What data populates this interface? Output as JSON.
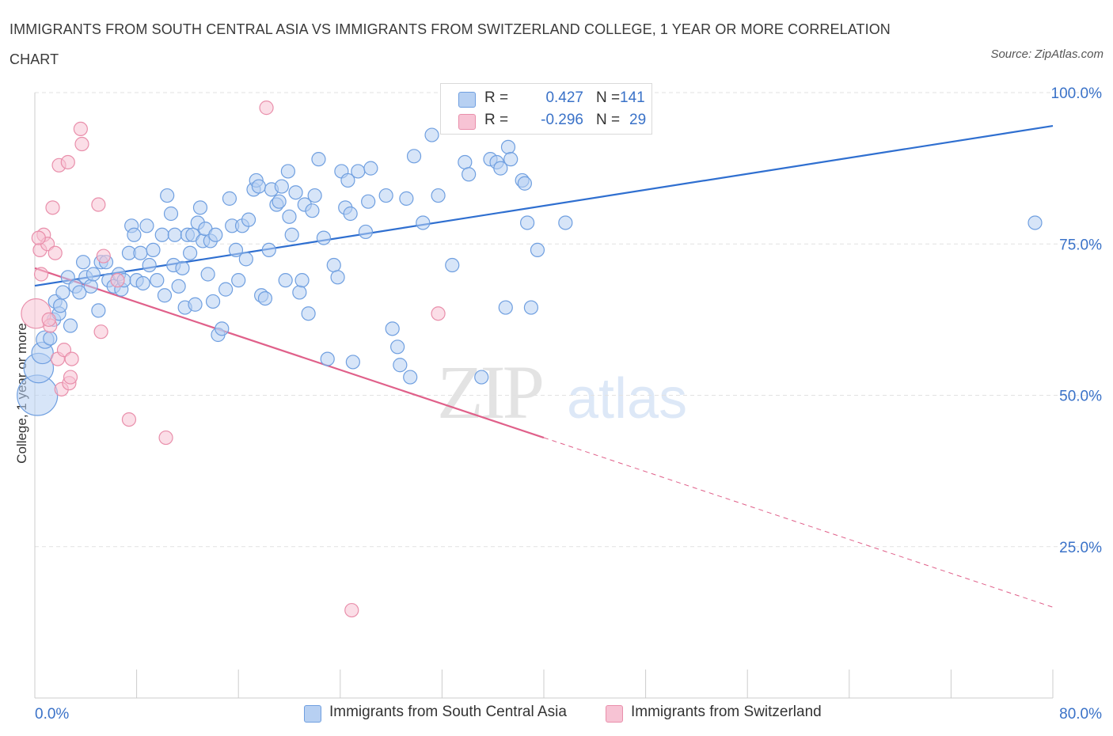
{
  "title": "IMMIGRANTS FROM SOUTH CENTRAL ASIA VS IMMIGRANTS FROM SWITZERLAND COLLEGE, 1 YEAR OR MORE CORRELATION CHART",
  "source": "Source: ZipAtlas.com",
  "watermark": {
    "zip": "ZIP",
    "atlas": "atlas"
  },
  "legend": {
    "series1": {
      "r_label": "R =",
      "r_value": "0.427",
      "n_label": "N =",
      "n_value": "141"
    },
    "series2": {
      "r_label": "R =",
      "r_value": "-0.296",
      "n_label": "N =",
      "n_value": "29"
    }
  },
  "colors": {
    "blue_fill": "#b7d0f2",
    "blue_stroke": "#6f9fe0",
    "blue_line": "#2f6fd0",
    "pink_fill": "#f7c3d4",
    "pink_stroke": "#e98fab",
    "pink_line": "#e0608a",
    "axis_text": "#3a72c8",
    "grid": "#dedede"
  },
  "chart_data": {
    "type": "scatter",
    "title": "IMMIGRANTS FROM SOUTH CENTRAL ASIA VS IMMIGRANTS FROM SWITZERLAND COLLEGE, 1 YEAR OR MORE CORRELATION CHART",
    "xlabel": "",
    "ylabel": "College, 1 year or more",
    "xlim": [
      0,
      80
    ],
    "ylim": [
      0,
      100
    ],
    "x_tick_labels": [
      "0.0%",
      "80.0%"
    ],
    "y_tick_labels": [
      "100.0%",
      "75.0%",
      "50.0%",
      "25.0%"
    ],
    "y_ticks": [
      100,
      75,
      50,
      25
    ],
    "grid": true,
    "legend_position": "top-center",
    "series": [
      {
        "name": "Immigrants from South Central Asia",
        "color": "#6f9fe0",
        "trend": {
          "x": [
            0,
            80
          ],
          "y": [
            68.1,
            94.5
          ]
        },
        "points": [
          [
            0.2,
            50,
            3
          ],
          [
            0.3,
            54.5,
            2.2
          ],
          [
            0.6,
            57,
            1.6
          ],
          [
            0.8,
            59.2,
            1.3
          ],
          [
            1.2,
            59.4,
            1
          ],
          [
            1.5,
            62.5,
            1
          ],
          [
            1.6,
            65.5,
            1
          ],
          [
            1.9,
            63.5,
            1
          ],
          [
            2,
            64.8,
            1
          ],
          [
            2.2,
            67,
            1
          ],
          [
            2.6,
            69.5,
            1
          ],
          [
            2.8,
            61.5,
            1
          ],
          [
            3.2,
            68,
            1
          ],
          [
            3.5,
            67,
            1
          ],
          [
            3.8,
            72,
            1
          ],
          [
            4,
            69.5,
            1
          ],
          [
            4.4,
            68,
            1
          ],
          [
            4.6,
            70,
            1
          ],
          [
            5,
            64,
            1
          ],
          [
            5.2,
            72,
            1
          ],
          [
            5.6,
            72,
            1
          ],
          [
            5.8,
            69,
            1
          ],
          [
            6.2,
            68,
            1
          ],
          [
            6.6,
            70,
            1
          ],
          [
            6.8,
            67.5,
            1
          ],
          [
            7,
            69,
            1
          ],
          [
            7.4,
            73.5,
            1
          ],
          [
            7.6,
            78,
            1
          ],
          [
            7.8,
            76.5,
            1
          ],
          [
            8,
            69,
            1
          ],
          [
            8.3,
            73.5,
            1
          ],
          [
            8.5,
            68.5,
            1
          ],
          [
            8.8,
            78,
            1
          ],
          [
            9,
            71.5,
            1
          ],
          [
            9.3,
            74,
            1
          ],
          [
            9.6,
            69,
            1
          ],
          [
            10,
            76.5,
            1
          ],
          [
            10.2,
            66.5,
            1
          ],
          [
            10.4,
            83,
            1
          ],
          [
            10.7,
            80,
            1
          ],
          [
            10.9,
            71.5,
            1
          ],
          [
            11,
            76.5,
            1
          ],
          [
            11.3,
            68,
            1
          ],
          [
            11.6,
            71,
            1
          ],
          [
            11.8,
            64.5,
            1
          ],
          [
            12,
            76.5,
            1
          ],
          [
            12.2,
            73.5,
            1
          ],
          [
            12.4,
            76.5,
            1
          ],
          [
            12.6,
            65,
            1
          ],
          [
            12.8,
            78.5,
            1
          ],
          [
            13,
            81,
            1
          ],
          [
            13.2,
            75.5,
            1
          ],
          [
            13.4,
            77.5,
            1
          ],
          [
            13.6,
            70,
            1
          ],
          [
            13.8,
            75.5,
            1
          ],
          [
            14,
            65.5,
            1
          ],
          [
            14.2,
            76.5,
            1
          ],
          [
            14.4,
            60,
            1
          ],
          [
            14.7,
            61,
            1
          ],
          [
            15,
            67.5,
            1
          ],
          [
            15.3,
            82.5,
            1
          ],
          [
            15.5,
            78,
            1
          ],
          [
            15.8,
            74,
            1
          ],
          [
            16,
            69,
            1
          ],
          [
            16.3,
            78,
            1
          ],
          [
            16.6,
            72.5,
            1
          ],
          [
            16.8,
            79,
            1
          ],
          [
            17.2,
            84,
            1
          ],
          [
            17.4,
            85.5,
            1
          ],
          [
            17.6,
            84.5,
            1
          ],
          [
            17.8,
            66.5,
            1
          ],
          [
            18.1,
            66,
            1
          ],
          [
            18.4,
            74,
            1
          ],
          [
            18.6,
            84,
            1
          ],
          [
            19,
            81.5,
            1
          ],
          [
            19.2,
            82,
            1
          ],
          [
            19.4,
            84.5,
            1
          ],
          [
            19.7,
            69,
            1
          ],
          [
            19.9,
            87,
            1
          ],
          [
            20,
            79.5,
            1
          ],
          [
            20.2,
            76.5,
            1
          ],
          [
            20.5,
            83.5,
            1
          ],
          [
            20.8,
            67,
            1
          ],
          [
            21,
            69,
            1
          ],
          [
            21.2,
            81.5,
            1
          ],
          [
            21.5,
            63.5,
            1
          ],
          [
            21.8,
            80.5,
            1
          ],
          [
            22,
            83,
            1
          ],
          [
            22.3,
            89,
            1
          ],
          [
            22.7,
            76,
            1
          ],
          [
            23,
            56,
            1
          ],
          [
            23.5,
            71.5,
            1
          ],
          [
            23.8,
            69.5,
            1
          ],
          [
            24.1,
            87,
            1
          ],
          [
            24.4,
            81,
            1
          ],
          [
            24.6,
            85.5,
            1
          ],
          [
            24.8,
            80,
            1
          ],
          [
            25,
            55.5,
            1
          ],
          [
            25.4,
            87,
            1
          ],
          [
            26,
            77,
            1
          ],
          [
            26.2,
            82,
            1
          ],
          [
            26.4,
            87.5,
            1
          ],
          [
            27.6,
            83,
            1
          ],
          [
            28.1,
            61,
            1
          ],
          [
            28.5,
            58,
            1
          ],
          [
            28.7,
            55,
            1
          ],
          [
            29.2,
            82.5,
            1
          ],
          [
            29.5,
            53,
            1
          ],
          [
            29.8,
            89.5,
            1
          ],
          [
            30.5,
            78.5,
            1
          ],
          [
            31.2,
            93,
            1
          ],
          [
            31.7,
            83,
            1
          ],
          [
            32.8,
            71.5,
            1
          ],
          [
            33.8,
            88.5,
            1
          ],
          [
            34.1,
            86.5,
            1
          ],
          [
            35.1,
            53,
            1
          ],
          [
            35.8,
            89,
            1
          ],
          [
            36.3,
            88.5,
            1
          ],
          [
            36.6,
            87.5,
            1
          ],
          [
            37,
            64.5,
            1
          ],
          [
            37.2,
            91,
            1
          ],
          [
            37.4,
            89,
            1
          ],
          [
            38.3,
            85.5,
            1
          ],
          [
            38.5,
            85,
            1
          ],
          [
            38.7,
            78.5,
            1
          ],
          [
            39,
            64.5,
            1
          ],
          [
            39.5,
            74,
            1
          ],
          [
            41.7,
            78.5,
            1
          ],
          [
            78.6,
            78.5,
            1
          ]
        ]
      },
      {
        "name": "Immigrants from Switzerland",
        "color": "#e98fab",
        "trend": {
          "x": [
            0,
            40
          ],
          "y": [
            71,
            43
          ],
          "dashed_extension": {
            "x": [
              40,
              80
            ],
            "y": [
              43,
              15
            ]
          }
        },
        "points": [
          [
            0.1,
            63.5,
            2.2
          ],
          [
            0.4,
            74,
            1
          ],
          [
            0.5,
            70,
            1
          ],
          [
            0.7,
            76.5,
            1
          ],
          [
            1,
            75,
            1
          ],
          [
            1.2,
            61.5,
            1
          ],
          [
            1.4,
            81,
            1
          ],
          [
            1.6,
            73.5,
            1
          ],
          [
            1.8,
            56,
            1
          ],
          [
            1.9,
            88,
            1
          ],
          [
            2.1,
            51,
            1
          ],
          [
            2.3,
            57.5,
            1
          ],
          [
            2.6,
            88.5,
            1
          ],
          [
            2.7,
            52,
            1
          ],
          [
            2.8,
            53,
            1
          ],
          [
            2.9,
            56,
            1
          ],
          [
            3.6,
            94,
            1
          ],
          [
            3.7,
            91.5,
            1
          ],
          [
            5,
            81.5,
            1
          ],
          [
            5.2,
            60.5,
            1
          ],
          [
            5.4,
            73,
            1
          ],
          [
            6.5,
            69,
            1
          ],
          [
            7.4,
            46,
            1
          ],
          [
            10.3,
            43,
            1
          ],
          [
            18.2,
            97.5,
            1
          ],
          [
            24.9,
            14.5,
            1
          ],
          [
            31.7,
            63.5,
            1
          ],
          [
            0.3,
            76,
            1
          ],
          [
            1.1,
            62.5,
            1
          ]
        ]
      }
    ]
  },
  "bottom_legend": {
    "item1": "Immigrants from South Central Asia",
    "item2": "Immigrants from Switzerland"
  }
}
